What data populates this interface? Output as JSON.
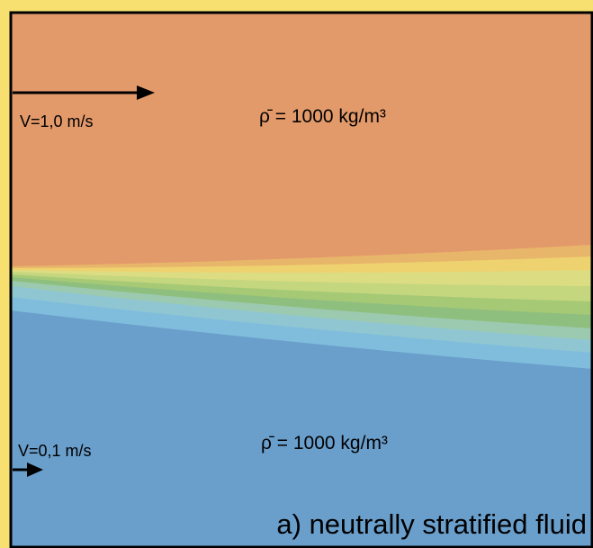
{
  "labels": {
    "top_velocity": "V=1,0 m/s",
    "top_density": "ρ̄ = 1000 kg/m³",
    "bottom_velocity": "V=0,1 m/s",
    "bottom_density": "ρ̄ = 1000 kg/m³"
  },
  "caption": "a) neutrally stratified fluid"
}
